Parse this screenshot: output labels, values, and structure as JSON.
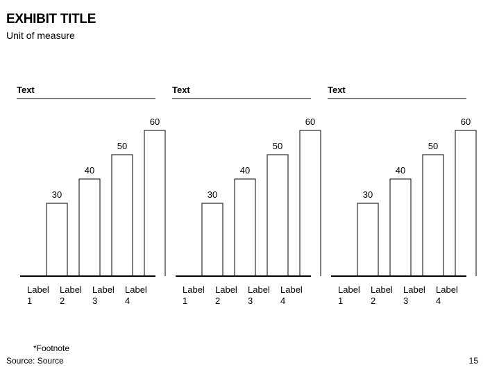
{
  "header": {
    "title": "EXHIBIT TITLE",
    "subtitle": "Unit of measure"
  },
  "footer": {
    "footnote": "*Footnote",
    "source": "Source: Source",
    "page_number": "15"
  },
  "chart_data": [
    {
      "type": "bar",
      "title": "Text",
      "categories": [
        [
          "Label",
          "1"
        ],
        [
          "Label",
          "2"
        ],
        [
          "Label",
          "3"
        ],
        [
          "Label",
          "4"
        ]
      ],
      "values": [
        30,
        40,
        50,
        60
      ],
      "ylim": [
        0,
        60
      ],
      "grid": false,
      "xlabel": "",
      "ylabel": ""
    },
    {
      "type": "bar",
      "title": "Text",
      "categories": [
        [
          "Label",
          "1"
        ],
        [
          "Label",
          "2"
        ],
        [
          "Label",
          "3"
        ],
        [
          "Label",
          "4"
        ]
      ],
      "values": [
        30,
        40,
        50,
        60
      ],
      "ylim": [
        0,
        60
      ],
      "grid": false,
      "xlabel": "",
      "ylabel": ""
    },
    {
      "type": "bar",
      "title": "Text",
      "categories": [
        [
          "Label",
          "1"
        ],
        [
          "Label",
          "2"
        ],
        [
          "Label",
          "3"
        ],
        [
          "Label",
          "4"
        ]
      ],
      "values": [
        30,
        40,
        50,
        60
      ],
      "ylim": [
        0,
        60
      ],
      "grid": false,
      "xlabel": "",
      "ylabel": ""
    }
  ]
}
